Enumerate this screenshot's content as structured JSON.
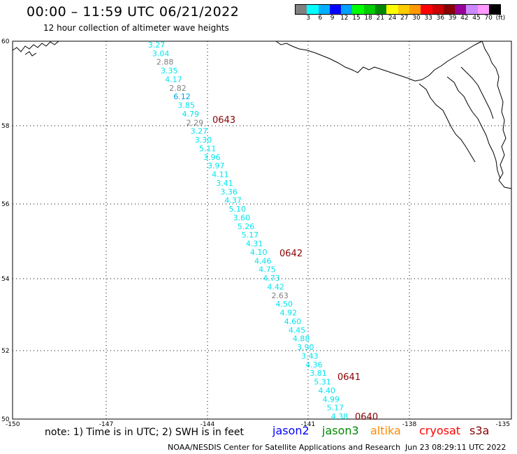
{
  "header": {
    "title": "00:00 – 11:59 UTC 06/21/2022",
    "subtitle": "12 hour collection of altimeter wave heights"
  },
  "colorbar": {
    "colors": [
      "#808080",
      "#00ffff",
      "#00b0ff",
      "#0000ff",
      "#00a0ff",
      "#00ff00",
      "#00cc00",
      "#008800",
      "#ffff00",
      "#ffcc00",
      "#ff9900",
      "#ff0000",
      "#cc0000",
      "#880000",
      "#990099",
      "#cc88ff",
      "#ff99ff",
      "#000000"
    ],
    "labels": [
      "3",
      "6",
      "9",
      "12",
      "15",
      "18",
      "21",
      "24",
      "27",
      "30",
      "33",
      "36",
      "39",
      "42",
      "45",
      "70",
      "(ft)"
    ]
  },
  "axes": {
    "x_ticks": [
      "-150",
      "-147",
      "-144",
      "-141",
      "-138",
      "-135"
    ],
    "y_ticks": [
      "60",
      "58",
      "56",
      "54",
      "52",
      "50"
    ],
    "lon_range": [
      -150,
      -135
    ],
    "lat_range": [
      50,
      60
    ]
  },
  "times": [
    {
      "label": "0643",
      "lat": 58.0
    },
    {
      "label": "0642",
      "lat": 54.6
    },
    {
      "label": "0641",
      "lat": 51.2
    },
    {
      "label": "0640",
      "lat": 50.1
    }
  ],
  "track": [
    {
      "v": "3.27",
      "c": "cyan"
    },
    {
      "v": "3.04",
      "c": "cyan"
    },
    {
      "v": "2.88",
      "c": "gray"
    },
    {
      "v": "3.35",
      "c": "cyan"
    },
    {
      "v": "4.17",
      "c": "cyan"
    },
    {
      "v": "2.82",
      "c": "gray"
    },
    {
      "v": "6.12",
      "c": "blue"
    },
    {
      "v": "3.85",
      "c": "cyan"
    },
    {
      "v": "4.79",
      "c": "cyan"
    },
    {
      "v": "2.29",
      "c": "gray"
    },
    {
      "v": "3.27",
      "c": "cyan"
    },
    {
      "v": "3.30",
      "c": "cyan"
    },
    {
      "v": "5.11",
      "c": "cyan"
    },
    {
      "v": "3.96",
      "c": "cyan"
    },
    {
      "v": "3.97",
      "c": "cyan"
    },
    {
      "v": "4.11",
      "c": "cyan"
    },
    {
      "v": "3.41",
      "c": "cyan"
    },
    {
      "v": "3.36",
      "c": "cyan"
    },
    {
      "v": "4.37",
      "c": "cyan"
    },
    {
      "v": "5.10",
      "c": "cyan"
    },
    {
      "v": "3.60",
      "c": "cyan"
    },
    {
      "v": "5.26",
      "c": "cyan"
    },
    {
      "v": "5.17",
      "c": "cyan"
    },
    {
      "v": "4.31",
      "c": "cyan"
    },
    {
      "v": "4.10",
      "c": "cyan"
    },
    {
      "v": "4.46",
      "c": "cyan"
    },
    {
      "v": "4.75",
      "c": "cyan"
    },
    {
      "v": "4.73",
      "c": "cyan"
    },
    {
      "v": "4.42",
      "c": "cyan"
    },
    {
      "v": "2.63",
      "c": "gray"
    },
    {
      "v": "4.50",
      "c": "cyan"
    },
    {
      "v": "4.92",
      "c": "cyan"
    },
    {
      "v": "4.60",
      "c": "cyan"
    },
    {
      "v": "4.45",
      "c": "cyan"
    },
    {
      "v": "4.88",
      "c": "cyan"
    },
    {
      "v": "3.90",
      "c": "cyan"
    },
    {
      "v": "3.43",
      "c": "cyan"
    },
    {
      "v": "4.36",
      "c": "cyan"
    },
    {
      "v": "3.81",
      "c": "cyan"
    },
    {
      "v": "5.31",
      "c": "cyan"
    },
    {
      "v": "4.40",
      "c": "cyan"
    },
    {
      "v": "4.99",
      "c": "cyan"
    },
    {
      "v": "5.17",
      "c": "cyan"
    },
    {
      "v": "4.38",
      "c": "cyan"
    }
  ],
  "track_colors": {
    "cyan": "#00e5ee",
    "gray": "#808080",
    "blue": "#00a0e0"
  },
  "footer": {
    "note": "note: 1) Time is in UTC; 2) SWH is in feet",
    "satellites": [
      {
        "name": "jason2",
        "color": "#0000ff"
      },
      {
        "name": "jason3",
        "color": "#008800"
      },
      {
        "name": "altika",
        "color": "#ff8800"
      },
      {
        "name": "cryosat",
        "color": "#ff0000"
      },
      {
        "name": "s3a",
        "color": "#880000"
      }
    ],
    "credit": "NOAA/NESDIS Center for Satellite Applications and Research",
    "timestamp": "Jun 23 08:29:11 UTC 2022"
  }
}
